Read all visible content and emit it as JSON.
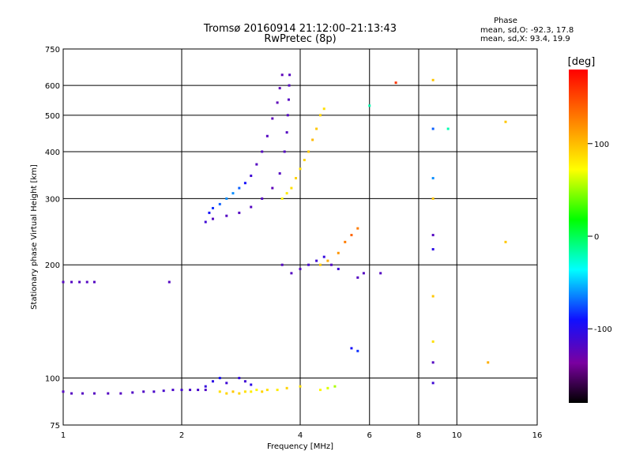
{
  "chart_data": {
    "type": "scatter",
    "title": "Tromsø 20160914 21:12:00–21:13:43",
    "subtitle": "RwPretec (8p)",
    "xlabel": "Frequency [MHz]",
    "ylabel": "Stationary phase Virtual Height [km]",
    "x_scale": "log",
    "y_scale": "log",
    "xlim": [
      1,
      16
    ],
    "ylim": [
      75,
      750
    ],
    "x_ticks": [
      1,
      2,
      4,
      6,
      8,
      10,
      16
    ],
    "y_ticks": [
      75,
      100,
      200,
      300,
      400,
      500,
      600,
      750
    ],
    "grid": true,
    "colorbar": {
      "label": "[deg]",
      "range": [
        -180,
        180
      ],
      "ticks": [
        100,
        0,
        -100
      ],
      "colormap": [
        "#000000",
        "#7a00a0",
        "#1010ff",
        "#00ffff",
        "#00ff00",
        "#ffff00",
        "#ff8000",
        "#ff0000"
      ]
    },
    "stats_header": "Phase",
    "stats": [
      "mean, sd,O: -92.3, 17.8",
      "mean, sd,X:  93.4, 19.9"
    ],
    "series": [
      {
        "values": [
          [
            1.0,
            92,
            -110
          ],
          [
            1.05,
            91,
            -110
          ],
          [
            1.12,
            91,
            -110
          ],
          [
            1.2,
            91,
            -110
          ],
          [
            1.3,
            91,
            -110
          ],
          [
            1.4,
            91,
            -110
          ],
          [
            1.5,
            91.5,
            -108
          ],
          [
            1.6,
            92,
            -108
          ],
          [
            1.7,
            92,
            -106
          ],
          [
            1.8,
            92.5,
            -104
          ],
          [
            1.9,
            93,
            -106
          ],
          [
            2.0,
            93,
            -104
          ],
          [
            2.1,
            93,
            -106
          ],
          [
            2.2,
            93,
            -104
          ],
          [
            2.3,
            93,
            -108
          ]
        ]
      },
      {
        "values": [
          [
            1.0,
            180,
            -110
          ],
          [
            1.05,
            180,
            -110
          ],
          [
            1.1,
            180,
            -110
          ],
          [
            1.15,
            180,
            -110
          ],
          [
            1.2,
            180,
            -110
          ],
          [
            1.86,
            180,
            -110
          ]
        ]
      },
      {
        "values": [
          [
            2.3,
            95,
            -95
          ],
          [
            2.4,
            98,
            -90
          ],
          [
            2.5,
            100,
            -80
          ],
          [
            2.6,
            97,
            -100
          ],
          [
            2.8,
            100,
            -95
          ],
          [
            2.9,
            98,
            -100
          ],
          [
            3.0,
            96,
            -90
          ]
        ]
      },
      {
        "values": [
          [
            2.5,
            92,
            90
          ],
          [
            2.6,
            91,
            95
          ],
          [
            2.7,
            92,
            100
          ],
          [
            2.8,
            91,
            95
          ],
          [
            2.9,
            92,
            90
          ],
          [
            3.0,
            92,
            85
          ],
          [
            3.1,
            93,
            80
          ],
          [
            3.2,
            92,
            95
          ],
          [
            3.3,
            93,
            90
          ],
          [
            3.5,
            93,
            85
          ],
          [
            3.7,
            94,
            95
          ],
          [
            4.0,
            95,
            90
          ],
          [
            4.5,
            93,
            80
          ],
          [
            4.7,
            94,
            70
          ],
          [
            4.9,
            95,
            60
          ]
        ]
      },
      {
        "values": [
          [
            2.3,
            260,
            -100
          ],
          [
            2.35,
            275,
            -80
          ],
          [
            2.4,
            283,
            -70
          ],
          [
            2.5,
            290,
            -60
          ],
          [
            2.6,
            300,
            -50
          ],
          [
            2.7,
            310,
            -50
          ],
          [
            2.8,
            320,
            -60
          ],
          [
            2.9,
            330,
            -80
          ],
          [
            3.0,
            345,
            -100
          ],
          [
            3.1,
            370,
            -110
          ],
          [
            3.2,
            400,
            -110
          ],
          [
            3.3,
            440,
            -110
          ],
          [
            3.4,
            490,
            -115
          ],
          [
            3.5,
            540,
            -115
          ],
          [
            3.55,
            590,
            -115
          ],
          [
            3.6,
            640,
            -115
          ]
        ]
      },
      {
        "values": [
          [
            2.4,
            265,
            -110
          ],
          [
            2.6,
            270,
            -110
          ],
          [
            2.8,
            275,
            -110
          ],
          [
            3.0,
            285,
            -110
          ],
          [
            3.2,
            300,
            -110
          ],
          [
            3.4,
            320,
            -115
          ],
          [
            3.55,
            350,
            -110
          ],
          [
            3.65,
            400,
            -110
          ],
          [
            3.7,
            450,
            -110
          ],
          [
            3.72,
            500,
            -110
          ],
          [
            3.74,
            550,
            -110
          ],
          [
            3.75,
            600,
            -110
          ],
          [
            3.76,
            640,
            -110
          ]
        ]
      },
      {
        "values": [
          [
            3.6,
            300,
            80
          ],
          [
            3.7,
            310,
            85
          ],
          [
            3.8,
            320,
            90
          ],
          [
            3.9,
            340,
            95
          ],
          [
            4.0,
            360,
            90
          ],
          [
            4.1,
            380,
            95
          ],
          [
            4.2,
            400,
            100
          ],
          [
            4.3,
            430,
            105
          ],
          [
            4.4,
            460,
            100
          ],
          [
            4.5,
            500,
            95
          ],
          [
            4.6,
            520,
            90
          ]
        ]
      },
      {
        "values": [
          [
            3.6,
            200,
            -110
          ],
          [
            3.8,
            190,
            -110
          ],
          [
            4.0,
            195,
            -110
          ],
          [
            4.2,
            200,
            -105
          ],
          [
            4.4,
            205,
            -100
          ],
          [
            4.6,
            210,
            -95
          ],
          [
            4.8,
            200,
            -110
          ],
          [
            5.0,
            195,
            -100
          ]
        ]
      },
      {
        "values": [
          [
            4.5,
            200,
            100
          ],
          [
            4.7,
            205,
            110
          ],
          [
            5.0,
            215,
            120
          ],
          [
            5.2,
            230,
            130
          ],
          [
            5.4,
            240,
            140
          ],
          [
            5.6,
            250,
            130
          ]
        ]
      },
      {
        "values": [
          [
            5.6,
            185,
            -110
          ],
          [
            5.8,
            190,
            -110
          ],
          [
            6.4,
            190,
            -110
          ],
          [
            5.4,
            120,
            -80
          ],
          [
            5.6,
            118,
            -70
          ]
        ]
      },
      {
        "values": [
          [
            8.7,
            620,
            100
          ],
          [
            8.7,
            460,
            -60
          ],
          [
            9.5,
            460,
            -10
          ],
          [
            8.7,
            340,
            -50
          ],
          [
            8.7,
            300,
            100
          ],
          [
            8.7,
            240,
            -110
          ],
          [
            8.7,
            220,
            -90
          ],
          [
            8.7,
            165,
            100
          ],
          [
            8.7,
            125,
            90
          ],
          [
            8.7,
            110,
            -110
          ],
          [
            8.7,
            97,
            -100
          ],
          [
            12,
            110,
            110
          ],
          [
            13.3,
            480,
            100
          ],
          [
            13.3,
            230,
            100
          ],
          [
            7.0,
            610,
            160
          ],
          [
            6.0,
            530,
            -10
          ]
        ]
      }
    ]
  }
}
